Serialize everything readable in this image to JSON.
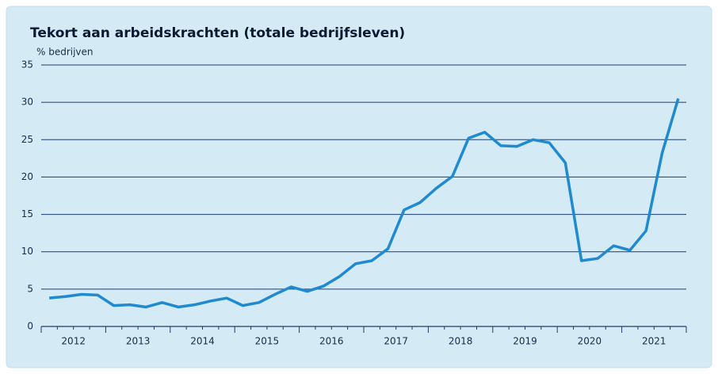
{
  "chart_data": {
    "type": "line",
    "title": "Tekort aan arbeidskrachten (totale bedrijfsleven)",
    "y_label": "% bedrijven",
    "years": [
      "2012",
      "2013",
      "2014",
      "2015",
      "2016",
      "2017",
      "2018",
      "2019",
      "2020",
      "2021"
    ],
    "periods_per_year": 4,
    "series": [
      {
        "name": "Tekort aan arbeidskrachten",
        "color": "#1f8ad0",
        "values": [
          3.8,
          4.0,
          4.3,
          4.2,
          2.8,
          2.9,
          2.6,
          3.2,
          2.6,
          2.9,
          3.4,
          3.8,
          2.8,
          3.2,
          4.3,
          5.3,
          4.7,
          5.4,
          6.7,
          8.4,
          8.8,
          10.4,
          15.6,
          16.6,
          18.5,
          20.1,
          25.2,
          26.0,
          24.2,
          24.1,
          25.0,
          24.6,
          21.9,
          8.8,
          9.1,
          10.8,
          10.2,
          12.8,
          23.2,
          30.5
        ]
      }
    ],
    "ylim": [
      0,
      35
    ],
    "yticks": [
      0,
      5,
      10,
      15,
      20,
      25,
      30,
      35
    ],
    "grid": true
  }
}
